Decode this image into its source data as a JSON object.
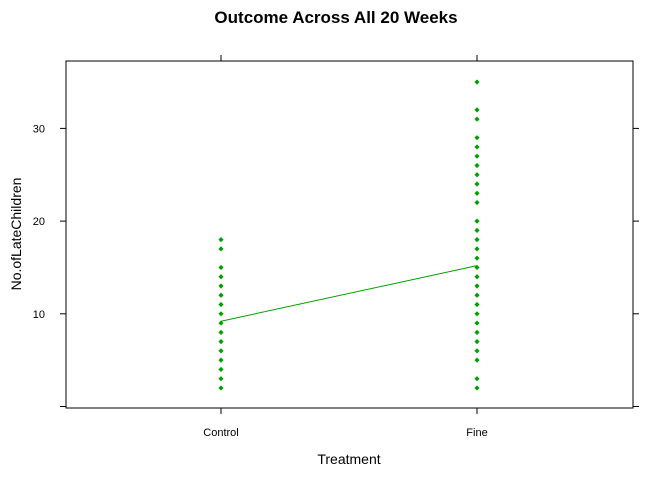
{
  "chart_data": {
    "type": "scatter",
    "title": "Outcome Across All 20 Weeks",
    "xlabel": "Treatment",
    "ylabel": "No.ofLateChildren",
    "categories": [
      "Control",
      "Fine"
    ],
    "yticks": [
      10,
      20,
      30
    ],
    "ylim": [
      0,
      36
    ],
    "grid": false,
    "series": [
      {
        "points": [
          {
            "x": "Control",
            "ys": [
              2,
              3,
              4,
              5,
              6,
              7,
              8,
              9,
              10,
              11,
              12,
              13,
              14,
              15,
              17,
              18
            ]
          },
          {
            "x": "Fine",
            "ys": [
              2,
              3,
              5,
              6,
              7,
              8,
              9,
              10,
              11,
              12,
              13,
              14,
              15,
              16,
              17,
              18,
              19,
              20,
              22,
              23,
              24,
              25,
              26,
              27,
              28,
              29,
              31,
              32,
              35
            ]
          }
        ],
        "mean_line": {
          "Control": 9.2,
          "Fine": 15.2
        },
        "color": "#00a000"
      }
    ]
  }
}
